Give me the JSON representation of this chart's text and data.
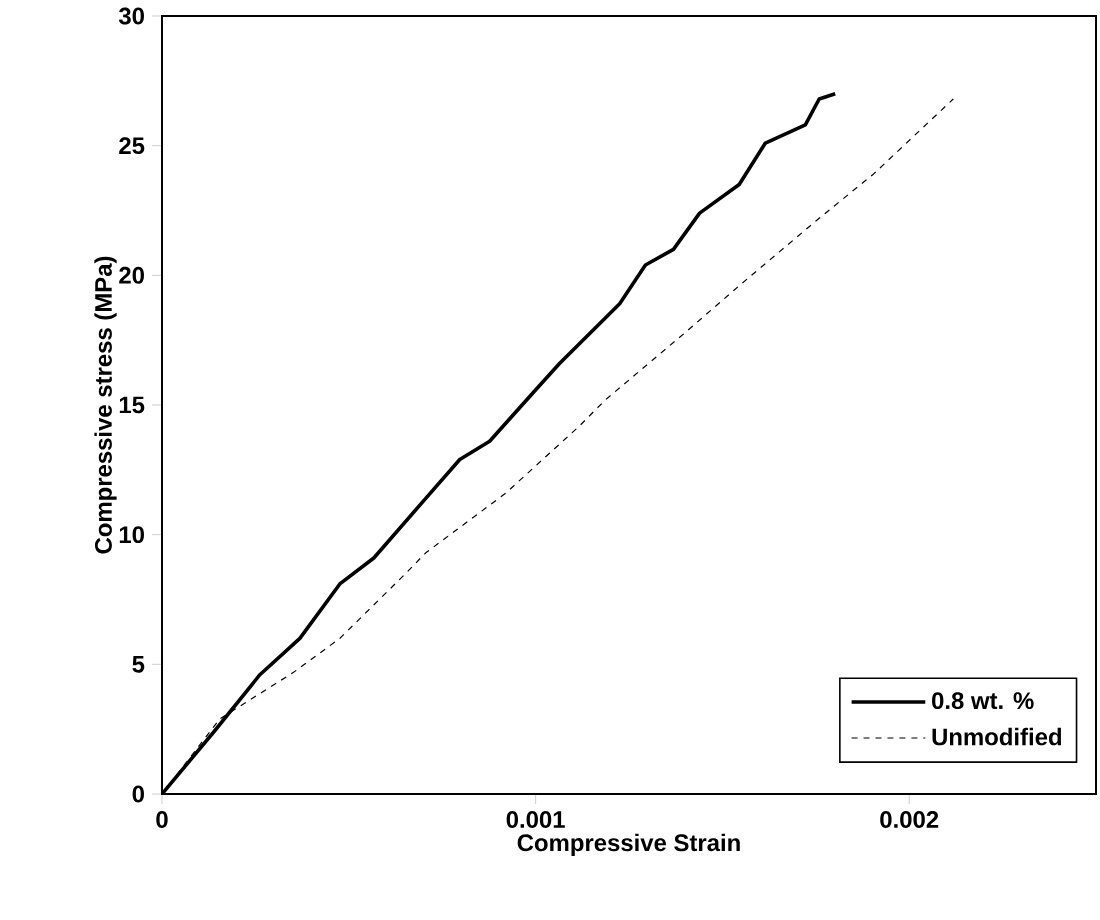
{
  "chart_data": {
    "type": "line",
    "xlabel": "Compressive Strain",
    "ylabel": "Compressive stress (MPa)",
    "xlim": [
      0,
      0.0025
    ],
    "ylim": [
      0,
      30
    ],
    "xticks": [
      0,
      0.001,
      0.002
    ],
    "yticks": [
      0,
      5,
      10,
      15,
      20,
      25,
      30
    ],
    "legend": "bottom right",
    "grid": false,
    "series": [
      {
        "name": "0.8 wt. %",
        "color": "#000000",
        "line_style": "solid",
        "x": [
          0,
          0.000139,
          0.000262,
          0.000369,
          0.000476,
          0.000567,
          0.000706,
          0.000797,
          0.000877,
          0.000995,
          0.001064,
          0.001225,
          0.001294,
          0.001369,
          0.001439,
          0.001545,
          0.001615,
          0.001722,
          0.001759,
          0.001802
        ],
        "values": [
          0,
          2.4,
          4.6,
          6.0,
          8.1,
          9.1,
          11.4,
          12.9,
          13.6,
          15.5,
          16.6,
          18.9,
          20.4,
          21.0,
          22.4,
          23.5,
          25.1,
          25.8,
          26.8,
          27.0
        ]
      },
      {
        "name": "Unmodified",
        "color": "#000000",
        "line_style": "dashed",
        "x": [
          0,
          0.000155,
          0.000353,
          0.000476,
          0.000652,
          0.000706,
          0.00092,
          0.00108,
          0.001118,
          0.001187,
          0.001401,
          0.001545,
          0.001759,
          0.001904,
          0.002118
        ],
        "values": [
          0,
          2.9,
          4.7,
          6.0,
          8.5,
          9.3,
          11.6,
          13.7,
          14.2,
          15.2,
          17.8,
          19.6,
          22.2,
          23.9,
          26.8
        ]
      }
    ]
  }
}
